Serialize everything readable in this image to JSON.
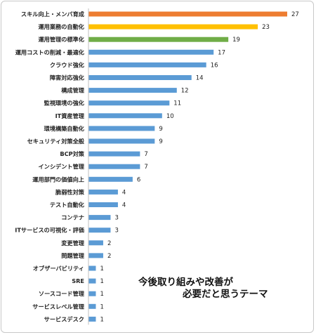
{
  "chart_data": {
    "type": "bar",
    "orientation": "horizontal",
    "title_lines": [
      "今後取り組みや改善が",
      "必要だと思うテーマ"
    ],
    "categories": [
      "スキル向上・メンバ育成",
      "運用業務の自動化",
      "運用管理の標準化",
      "運用コストの削減・最適化",
      "クラウド強化",
      "障害対応強化",
      "構成管理",
      "監視環境の強化",
      "IT資産管理",
      "環境構築自動化",
      "セキュリティ対策全般",
      "BCP対策",
      "インシデント管理",
      "運用部門の価値向上",
      "脆弱性対策",
      "テスト自動化",
      "コンテナ",
      "ITサービスの可視化・評価",
      "変更管理",
      "問題管理",
      "オブザーバビリティ",
      "SRE",
      "ソースコード管理",
      "サービスレベル管理",
      "サービスデスク"
    ],
    "values": [
      27,
      23,
      19,
      17,
      16,
      14,
      12,
      11,
      10,
      9,
      9,
      7,
      7,
      6,
      4,
      4,
      3,
      3,
      2,
      2,
      1,
      1,
      1,
      1,
      1
    ],
    "colors": [
      "#ed7d31",
      "#ffc000",
      "#70ad47"
    ],
    "default_color": "#5b9bd5",
    "xlim": [
      0,
      27
    ],
    "grid": false,
    "legend": "none"
  }
}
